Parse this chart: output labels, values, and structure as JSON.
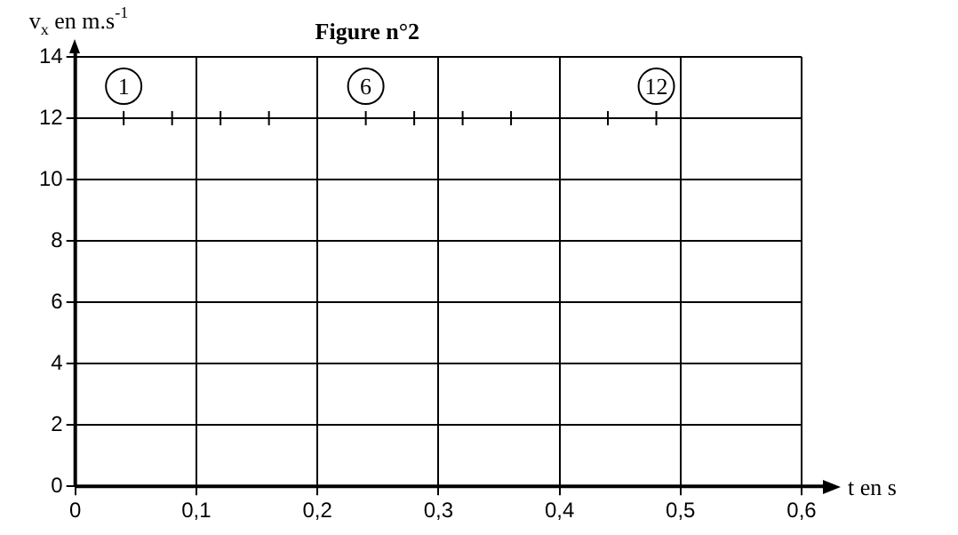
{
  "chart_data": {
    "type": "scatter",
    "title": "Figure n°2",
    "xlabel": "t en s",
    "ylabel": "v$_{x}$ en m.s$^{-1}$",
    "x": [
      0.04,
      0.08,
      0.12,
      0.16,
      0.2,
      0.24,
      0.28,
      0.32,
      0.36,
      0.4,
      0.44,
      0.48
    ],
    "series": [
      {
        "color": "#000000",
        "values": [
          12,
          12,
          12,
          12,
          null,
          12,
          12,
          12,
          12,
          null,
          12,
          12
        ]
      }
    ],
    "xlim": [
      0,
      0.6
    ],
    "xticks": [
      0,
      {
        "value": 0.1,
        "label": "0,1"
      },
      {
        "value": 0.2,
        "label": "0,2"
      },
      {
        "value": 0.3,
        "label": "0,3"
      },
      {
        "value": 0.4,
        "label": "0,4"
      },
      {
        "value": 0.5,
        "label": "0,5"
      },
      {
        "value": 0.6,
        "label": "0,6"
      }
    ],
    "ylim": [
      0,
      14
    ],
    "yticks": [
      0,
      2,
      4,
      6,
      8,
      10,
      12,
      14
    ],
    "annotations": [
      {
        "text": "1",
        "x": 0.04,
        "y": 12
      },
      {
        "text": "6",
        "x": 0.24,
        "y": 12
      },
      {
        "text": "12",
        "x": 0.48,
        "y": 12
      }
    ],
    "grid": true,
    "legend": false,
    "marker": "cross"
  }
}
